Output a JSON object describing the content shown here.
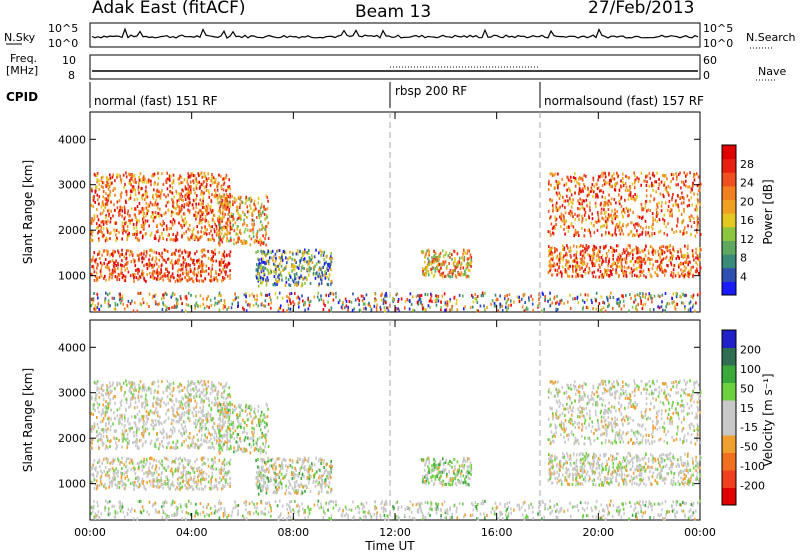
{
  "header": {
    "station": "Adak East (fitACF)",
    "beam": "Beam 13",
    "date": "27/Feb/2013"
  },
  "side_labels": {
    "nsky": "N.Sky",
    "nsearch": "N.Search",
    "freq_line1": "Freq.",
    "freq_line2": "[MHz]",
    "nave": "Nave",
    "cpid": "CPID"
  },
  "noise_panel": {
    "left_ticks": [
      "10^5",
      "10^0"
    ],
    "right_ticks": [
      "10^5",
      "10^0"
    ]
  },
  "freq_panel": {
    "left_ticks": [
      "10",
      "8"
    ],
    "right_ticks": [
      "60",
      "0"
    ]
  },
  "cpid_segments": [
    "normal (fast) 151 RF",
    "rbsp 200 RF",
    "normalsound (fast) 157 RF"
  ],
  "colors": {
    "power_scale": [
      "#1a1aff",
      "#2e4fb0",
      "#3a8a7a",
      "#5fa860",
      "#8cc640",
      "#e2c820",
      "#f0a020",
      "#f08020",
      "#f05020",
      "#e82010",
      "#e00000"
    ],
    "velocity_scale": [
      "#2020c8",
      "#2f6e50",
      "#3aa83a",
      "#6cd040",
      "#c8c8c8",
      "#c8c8c8",
      "#f0a030",
      "#f07020",
      "#f04020",
      "#e00000"
    ]
  },
  "chart_data": [
    {
      "type": "heatmap",
      "name": "power",
      "ylabel": "Slant Range [km]",
      "yticks": [
        "1000",
        "2000",
        "3000",
        "4000"
      ],
      "ylim": [
        200,
        4600
      ],
      "xlim": [
        "00:00",
        "24:00"
      ],
      "colorbar_label": "Power [dB]",
      "colorbar_ticks": [
        "4",
        "8",
        "12",
        "16",
        "20",
        "24",
        "28"
      ],
      "colorbar_range": [
        0,
        32
      ]
    },
    {
      "type": "heatmap",
      "name": "velocity",
      "ylabel": "Slant Range [km]",
      "yticks": [
        "1000",
        "2000",
        "3000",
        "4000"
      ],
      "ylim": [
        200,
        4600
      ],
      "xlim": [
        "00:00",
        "24:00"
      ],
      "colorbar_label": "Velocity [m s⁻¹]",
      "colorbar_ticks": [
        "200",
        "100",
        "50",
        "15",
        "-15",
        "-50",
        "-100",
        "-200"
      ],
      "colorbar_range": [
        -250,
        250
      ]
    }
  ],
  "xaxis": {
    "ticks": [
      "00:00",
      "04:00",
      "08:00",
      "12:00",
      "16:00",
      "20:00",
      "00:00"
    ],
    "label": "Time UT"
  }
}
